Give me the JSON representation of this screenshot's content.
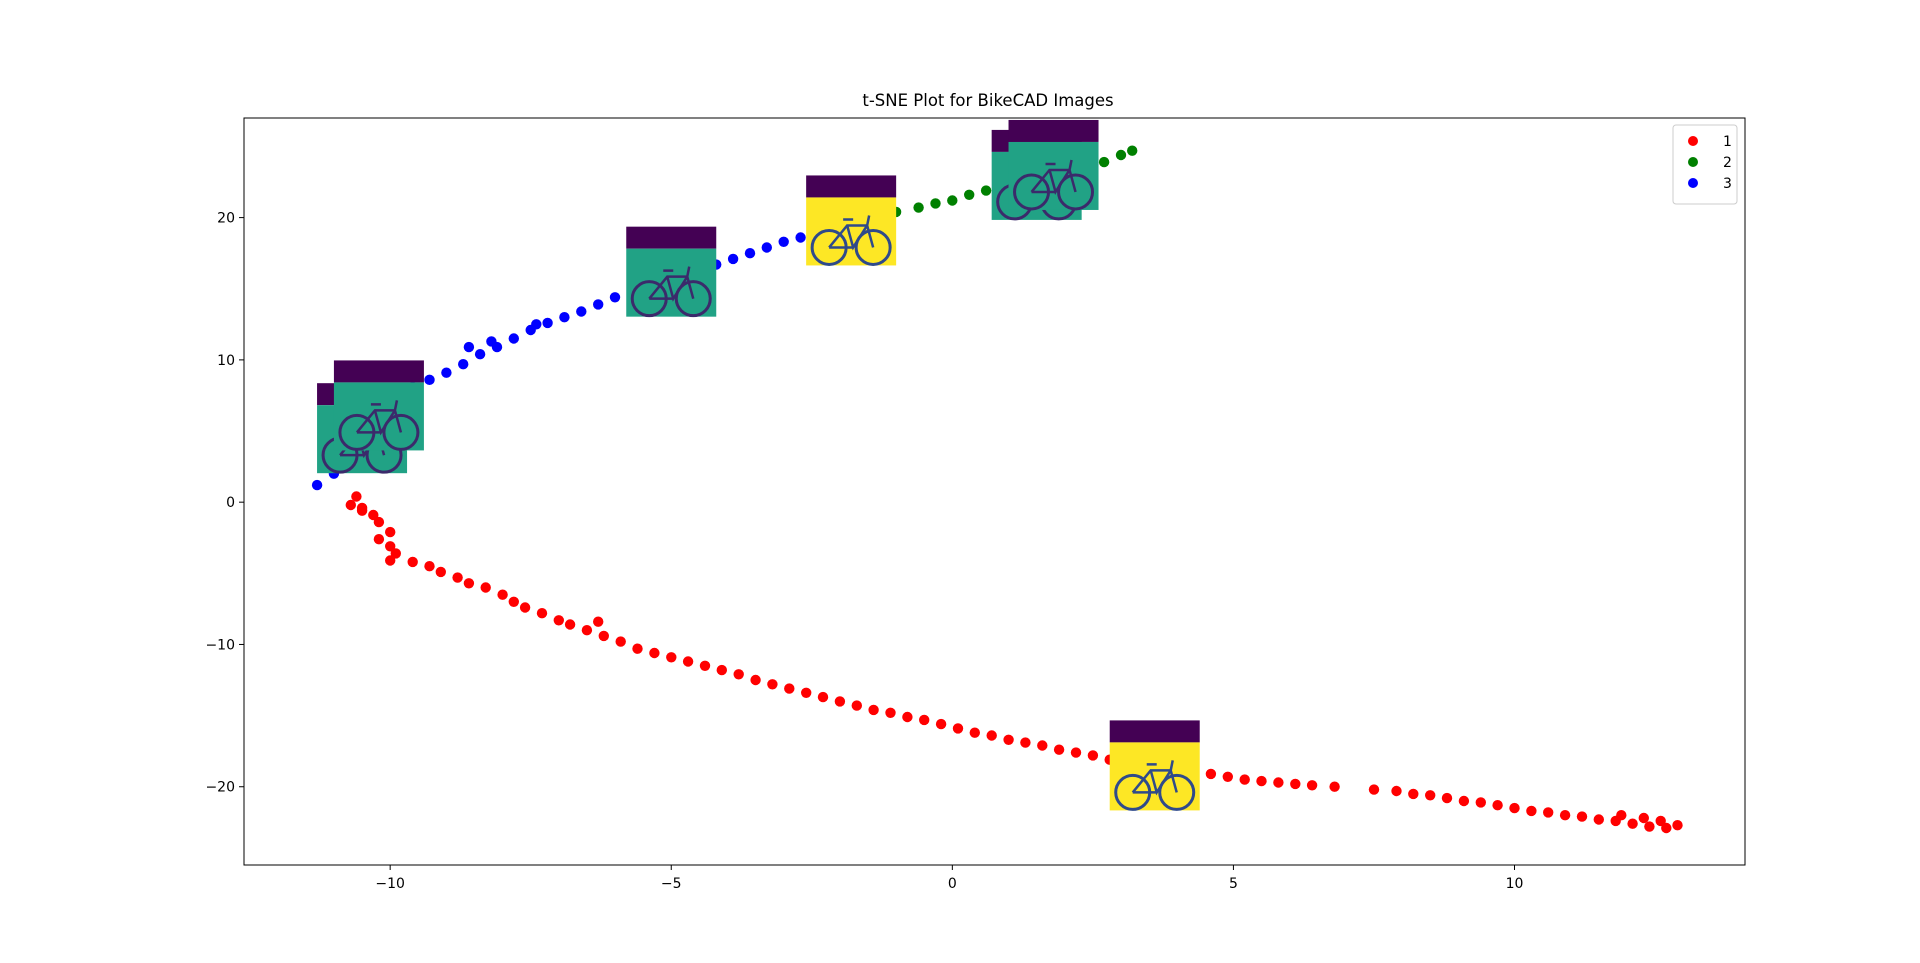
{
  "chart_data": {
    "type": "scatter",
    "title": "t-SNE Plot for BikeCAD Images",
    "xlabel": "",
    "ylabel": "",
    "xlim": [
      -12.6,
      14.1
    ],
    "ylim": [
      -25.5,
      27
    ],
    "xticks": [
      -10,
      -5,
      0,
      5,
      10
    ],
    "yticks": [
      -20,
      -10,
      0,
      10,
      20
    ],
    "xtick_labels": [
      "−10",
      "−5",
      "0",
      "5",
      "10"
    ],
    "ytick_labels": [
      "−20",
      "−10",
      "0",
      "10",
      "20"
    ],
    "grid": false,
    "legend_position": "top-right",
    "legend": [
      "1",
      "2",
      "3"
    ],
    "series": [
      {
        "name": "1",
        "color": "#ff0000",
        "points": [
          [
            -10.6,
            0.4
          ],
          [
            -10.7,
            -0.2
          ],
          [
            -10.5,
            -0.6
          ],
          [
            -10.3,
            -0.9
          ],
          [
            -10.5,
            -0.4
          ],
          [
            -10.2,
            -1.4
          ],
          [
            -10.0,
            -2.1
          ],
          [
            -10.2,
            -2.6
          ],
          [
            -10.0,
            -3.1
          ],
          [
            -9.9,
            -3.6
          ],
          [
            -10.0,
            -4.1
          ],
          [
            -9.6,
            -4.2
          ],
          [
            -9.3,
            -4.5
          ],
          [
            -9.1,
            -4.9
          ],
          [
            -8.8,
            -5.3
          ],
          [
            -8.6,
            -5.7
          ],
          [
            -8.3,
            -6.0
          ],
          [
            -8.0,
            -6.5
          ],
          [
            -7.8,
            -7.0
          ],
          [
            -7.6,
            -7.4
          ],
          [
            -7.3,
            -7.8
          ],
          [
            -7.0,
            -8.3
          ],
          [
            -6.8,
            -8.6
          ],
          [
            -6.5,
            -9.0
          ],
          [
            -6.2,
            -9.4
          ],
          [
            -6.3,
            -8.4
          ],
          [
            -5.9,
            -9.8
          ],
          [
            -5.6,
            -10.3
          ],
          [
            -5.3,
            -10.6
          ],
          [
            -5.0,
            -10.9
          ],
          [
            -4.7,
            -11.2
          ],
          [
            -4.4,
            -11.5
          ],
          [
            -4.1,
            -11.8
          ],
          [
            -3.8,
            -12.1
          ],
          [
            -3.5,
            -12.5
          ],
          [
            -3.2,
            -12.8
          ],
          [
            -2.9,
            -13.1
          ],
          [
            -2.6,
            -13.4
          ],
          [
            -2.3,
            -13.7
          ],
          [
            -2.0,
            -14.0
          ],
          [
            -1.7,
            -14.3
          ],
          [
            -1.4,
            -14.6
          ],
          [
            -1.1,
            -14.8
          ],
          [
            -0.8,
            -15.1
          ],
          [
            -0.5,
            -15.3
          ],
          [
            -0.2,
            -15.6
          ],
          [
            0.1,
            -15.9
          ],
          [
            0.4,
            -16.2
          ],
          [
            0.7,
            -16.4
          ],
          [
            1.0,
            -16.7
          ],
          [
            1.3,
            -16.9
          ],
          [
            1.6,
            -17.1
          ],
          [
            1.9,
            -17.4
          ],
          [
            2.2,
            -17.6
          ],
          [
            2.5,
            -17.8
          ],
          [
            2.8,
            -18.1
          ],
          [
            3.1,
            -18.3
          ],
          [
            3.4,
            -18.5
          ],
          [
            3.7,
            -18.7
          ],
          [
            4.0,
            -18.9
          ],
          [
            4.3,
            -19.0
          ],
          [
            4.6,
            -19.1
          ],
          [
            4.9,
            -19.3
          ],
          [
            5.2,
            -19.5
          ],
          [
            5.5,
            -19.6
          ],
          [
            5.8,
            -19.7
          ],
          [
            6.1,
            -19.8
          ],
          [
            6.4,
            -19.9
          ],
          [
            6.8,
            -20.0
          ],
          [
            7.5,
            -20.2
          ],
          [
            7.9,
            -20.3
          ],
          [
            8.2,
            -20.5
          ],
          [
            8.5,
            -20.6
          ],
          [
            8.8,
            -20.8
          ],
          [
            9.1,
            -21.0
          ],
          [
            9.4,
            -21.1
          ],
          [
            9.7,
            -21.3
          ],
          [
            10.0,
            -21.5
          ],
          [
            10.3,
            -21.7
          ],
          [
            10.6,
            -21.8
          ],
          [
            10.9,
            -22.0
          ],
          [
            11.2,
            -22.1
          ],
          [
            11.5,
            -22.3
          ],
          [
            11.8,
            -22.4
          ],
          [
            12.1,
            -22.6
          ],
          [
            12.4,
            -22.8
          ],
          [
            12.7,
            -22.9
          ],
          [
            12.9,
            -22.7
          ],
          [
            12.3,
            -22.2
          ],
          [
            11.9,
            -22.0
          ],
          [
            12.6,
            -22.4
          ]
        ]
      },
      {
        "name": "2",
        "color": "#008000",
        "points": [
          [
            -1.0,
            20.4
          ],
          [
            -0.6,
            20.7
          ],
          [
            -0.3,
            21.0
          ],
          [
            0.0,
            21.2
          ],
          [
            0.3,
            21.6
          ],
          [
            0.6,
            21.9
          ],
          [
            0.9,
            22.1
          ],
          [
            1.2,
            22.4
          ],
          [
            1.5,
            22.7
          ],
          [
            1.8,
            23.0
          ],
          [
            2.1,
            23.3
          ],
          [
            2.4,
            23.6
          ],
          [
            2.7,
            23.9
          ],
          [
            3.0,
            24.4
          ],
          [
            3.2,
            24.7
          ],
          [
            0.8,
            22.3
          ],
          [
            1.0,
            22.6
          ]
        ]
      },
      {
        "name": "3",
        "color": "#0000ff",
        "points": [
          [
            -11.3,
            1.2
          ],
          [
            -11.0,
            2.0
          ],
          [
            -10.8,
            3.2
          ],
          [
            -10.7,
            4.5
          ],
          [
            -10.5,
            5.8
          ],
          [
            -10.2,
            6.8
          ],
          [
            -9.9,
            7.5
          ],
          [
            -9.6,
            8.1
          ],
          [
            -9.3,
            8.6
          ],
          [
            -9.0,
            9.1
          ],
          [
            -8.7,
            9.7
          ],
          [
            -8.4,
            10.4
          ],
          [
            -8.1,
            10.9
          ],
          [
            -7.8,
            11.5
          ],
          [
            -7.5,
            12.1
          ],
          [
            -7.2,
            12.6
          ],
          [
            -6.9,
            13.0
          ],
          [
            -6.6,
            13.4
          ],
          [
            -6.3,
            13.9
          ],
          [
            -6.0,
            14.4
          ],
          [
            -5.7,
            14.8
          ],
          [
            -5.4,
            15.2
          ],
          [
            -5.1,
            15.6
          ],
          [
            -4.8,
            15.9
          ],
          [
            -4.5,
            16.3
          ],
          [
            -4.2,
            16.7
          ],
          [
            -3.9,
            17.1
          ],
          [
            -3.6,
            17.5
          ],
          [
            -3.3,
            17.9
          ],
          [
            -3.0,
            18.3
          ],
          [
            -2.7,
            18.6
          ],
          [
            -2.4,
            19.0
          ],
          [
            -2.0,
            19.3
          ],
          [
            -1.7,
            19.7
          ],
          [
            -8.6,
            10.9
          ],
          [
            -8.2,
            11.3
          ],
          [
            -7.4,
            12.5
          ]
        ]
      }
    ],
    "thumbnails": [
      {
        "x": -10.5,
        "y": 5.2,
        "frame": "#21a285",
        "top_band": "#440154"
      },
      {
        "x": -10.2,
        "y": 6.8,
        "frame": "#21a285",
        "top_band": "#440154"
      },
      {
        "x": -5.0,
        "y": 16.2,
        "frame": "#21a285",
        "top_band": "#440154"
      },
      {
        "x": -1.8,
        "y": 19.8,
        "frame": "#fde725",
        "top_band": "#440154"
      },
      {
        "x": 1.5,
        "y": 23.0,
        "frame": "#21a285",
        "top_band": "#440154"
      },
      {
        "x": 1.8,
        "y": 23.7,
        "frame": "#21a285",
        "top_band": "#440154"
      },
      {
        "x": 3.6,
        "y": -18.5,
        "frame": "#fde725",
        "top_band": "#440154"
      }
    ]
  }
}
